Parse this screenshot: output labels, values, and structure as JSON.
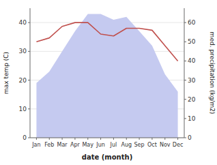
{
  "chart_data": {
    "type": "area",
    "categories": [
      "Jan",
      "Feb",
      "Mar",
      "Apr",
      "May",
      "Jun",
      "Jul",
      "Aug",
      "Sep",
      "Oct",
      "Nov",
      "Dec"
    ],
    "series": [
      {
        "type": "area",
        "color": "#c5caf0",
        "values": [
          19,
          23,
          30,
          37,
          43,
          43,
          41,
          42,
          37,
          32,
          22,
          16
        ]
      },
      {
        "type": "line",
        "color": "#c0504d",
        "axis": "y2",
        "values": [
          50,
          52,
          58,
          60,
          60,
          54,
          53,
          57,
          57,
          56,
          48,
          40
        ]
      }
    ],
    "xlabel": "date (month)",
    "ylabel": "max temp (C)",
    "y2label": "med. precipitation (kg/m2)",
    "ylim": [
      0,
      45
    ],
    "yticks": [
      0,
      10,
      20,
      30,
      40
    ],
    "y2lim": [
      0,
      67.5
    ],
    "y2ticks": [
      0,
      10,
      20,
      30,
      40,
      50,
      60
    ]
  }
}
